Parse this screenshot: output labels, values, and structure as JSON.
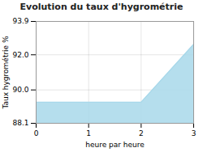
{
  "chart_data": {
    "type": "area",
    "title": "Evolution du taux d'hygrométrie",
    "xlabel": "heure par heure",
    "ylabel": "Taux hygrométrie %",
    "x": [
      0,
      2,
      3
    ],
    "values": [
      89.3,
      89.3,
      92.6
    ],
    "color": "#a8d8ea",
    "xlim": [
      0,
      3
    ],
    "xticks": [
      0,
      1,
      2,
      3
    ],
    "ylim": [
      88.1,
      93.9
    ],
    "yticks": [
      88.1,
      {
        "value": 90.0,
        "label": "90.0"
      },
      {
        "value": 92.0,
        "label": "92.0"
      },
      93.9
    ],
    "grid": true
  }
}
